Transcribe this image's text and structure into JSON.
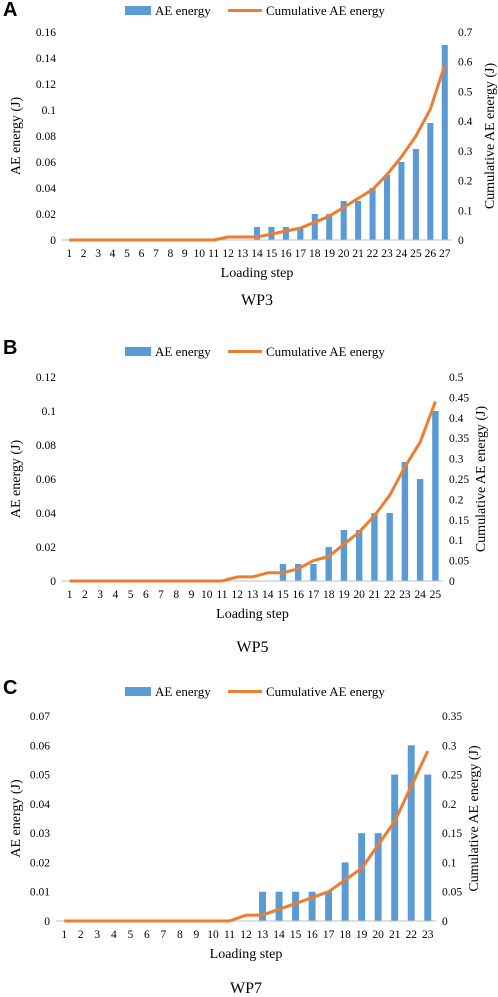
{
  "colors": {
    "bar": "#5b9bd5",
    "line": "#ed7d31",
    "axis": "#bfbfbf"
  },
  "chart_data": [
    {
      "type": "bar",
      "panel_label": "A",
      "caption": "WP3",
      "xlabel": "Loading step",
      "ylabel": "AE energy (J)",
      "y2label": "Cumulative AE energy (J)",
      "legend": [
        "AE energy",
        "Cumulative AE energy"
      ],
      "legend_position": "top-center",
      "ylim": [
        0,
        0.16
      ],
      "yticks": [
        0,
        0.02,
        0.04,
        0.06,
        0.08,
        0.1,
        0.12,
        0.14,
        0.16
      ],
      "ytick_labels": [
        "0",
        "0.02",
        "0.04",
        "0.06",
        "0.08",
        "0.1",
        "0.12",
        "0.14",
        "0.16"
      ],
      "y2lim": [
        0,
        0.7
      ],
      "y2ticks": [
        0,
        0.1,
        0.2,
        0.3,
        0.4,
        0.5,
        0.6,
        0.7
      ],
      "y2tick_labels": [
        "0",
        "0.1",
        "0.2",
        "0.3",
        "0.4",
        "0.5",
        "0.6",
        "0.7"
      ],
      "categories": [
        "1",
        "2",
        "3",
        "4",
        "5",
        "6",
        "7",
        "8",
        "9",
        "10",
        "11",
        "12",
        "13",
        "14",
        "15",
        "16",
        "17",
        "18",
        "19",
        "20",
        "21",
        "22",
        "23",
        "24",
        "25",
        "26",
        "27"
      ],
      "series": [
        {
          "name": "AE energy",
          "kind": "bar",
          "axis": "left",
          "values": [
            0,
            0,
            0,
            0,
            0,
            0,
            0,
            0,
            0,
            0,
            0,
            0,
            0,
            0.01,
            0.01,
            0.01,
            0.01,
            0.02,
            0.02,
            0.03,
            0.03,
            0.04,
            0.05,
            0.06,
            0.07,
            0.09,
            0.15
          ]
        },
        {
          "name": "Cumulative AE energy",
          "kind": "line",
          "axis": "right",
          "values": [
            0,
            0,
            0,
            0,
            0,
            0,
            0,
            0,
            0,
            0,
            0,
            0.01,
            0.01,
            0.01,
            0.02,
            0.03,
            0.04,
            0.06,
            0.08,
            0.11,
            0.14,
            0.17,
            0.22,
            0.28,
            0.35,
            0.44,
            0.59
          ]
        }
      ],
      "grid": false
    },
    {
      "type": "bar",
      "panel_label": "B",
      "caption": "WP5",
      "xlabel": "Loading step",
      "ylabel": "AE energy (J)",
      "y2label": "Cumulative AE energy (J)",
      "legend": [
        "AE energy",
        "Cumulative AE energy"
      ],
      "legend_position": "top-center",
      "ylim": [
        0,
        0.12
      ],
      "yticks": [
        0,
        0.02,
        0.04,
        0.06,
        0.08,
        0.1,
        0.12
      ],
      "ytick_labels": [
        "0",
        "0.02",
        "0.04",
        "0.06",
        "0.08",
        "0.1",
        "0.12"
      ],
      "y2lim": [
        0,
        0.5
      ],
      "y2ticks": [
        0,
        0.05,
        0.1,
        0.15,
        0.2,
        0.25,
        0.3,
        0.35,
        0.4,
        0.45,
        0.5
      ],
      "y2tick_labels": [
        "0",
        "0.05",
        "0.1",
        "0.15",
        "0.2",
        "0.25",
        "0.3",
        "0.35",
        "0.4",
        "0.45",
        "0.5"
      ],
      "categories": [
        "1",
        "2",
        "3",
        "4",
        "5",
        "6",
        "7",
        "8",
        "9",
        "10",
        "11",
        "12",
        "13",
        "14",
        "15",
        "16",
        "17",
        "18",
        "19",
        "20",
        "21",
        "22",
        "23",
        "24",
        "25"
      ],
      "series": [
        {
          "name": "AE energy",
          "kind": "bar",
          "axis": "left",
          "values": [
            0,
            0,
            0,
            0,
            0,
            0,
            0,
            0,
            0,
            0,
            0,
            0,
            0,
            0,
            0.01,
            0.01,
            0.01,
            0.02,
            0.03,
            0.03,
            0.04,
            0.04,
            0.07,
            0.06,
            0.1
          ]
        },
        {
          "name": "Cumulative AE energy",
          "kind": "line",
          "axis": "right",
          "values": [
            0,
            0,
            0,
            0,
            0,
            0,
            0,
            0,
            0,
            0,
            0,
            0.01,
            0.01,
            0.02,
            0.02,
            0.03,
            0.05,
            0.06,
            0.09,
            0.12,
            0.16,
            0.21,
            0.28,
            0.34,
            0.44
          ]
        }
      ],
      "grid": false
    },
    {
      "type": "bar",
      "panel_label": "C",
      "caption": "WP7",
      "xlabel": "Loading step",
      "ylabel": "AE energy (J)",
      "y2label": "Cumulative AE energy (J)",
      "legend": [
        "AE energy",
        "Cumulative AE energy"
      ],
      "legend_position": "top-center",
      "ylim": [
        0,
        0.07
      ],
      "yticks": [
        0,
        0.01,
        0.02,
        0.03,
        0.04,
        0.05,
        0.06,
        0.07
      ],
      "ytick_labels": [
        "0",
        "0.01",
        "0.02",
        "0.03",
        "0.04",
        "0.05",
        "0.06",
        "0.07"
      ],
      "y2lim": [
        0,
        0.35
      ],
      "y2ticks": [
        0,
        0.05,
        0.1,
        0.15,
        0.2,
        0.25,
        0.3,
        0.35
      ],
      "y2tick_labels": [
        "0",
        "0.05",
        "0.1",
        "0.15",
        "0.2",
        "0.25",
        "0.3",
        "0.35"
      ],
      "categories": [
        "1",
        "2",
        "3",
        "4",
        "5",
        "6",
        "7",
        "8",
        "9",
        "10",
        "11",
        "12",
        "13",
        "14",
        "15",
        "16",
        "17",
        "18",
        "19",
        "20",
        "21",
        "22",
        "23"
      ],
      "series": [
        {
          "name": "AE energy",
          "kind": "bar",
          "axis": "left",
          "values": [
            0,
            0,
            0,
            0,
            0,
            0,
            0,
            0,
            0,
            0,
            0,
            0,
            0.01,
            0.01,
            0.01,
            0.01,
            0.01,
            0.02,
            0.03,
            0.03,
            0.05,
            0.06,
            0.05
          ]
        },
        {
          "name": "Cumulative AE energy",
          "kind": "line",
          "axis": "right",
          "values": [
            0,
            0,
            0,
            0,
            0,
            0,
            0,
            0,
            0,
            0,
            0,
            0.01,
            0.01,
            0.02,
            0.03,
            0.04,
            0.05,
            0.07,
            0.09,
            0.13,
            0.17,
            0.23,
            0.29
          ]
        }
      ],
      "grid": false
    }
  ]
}
